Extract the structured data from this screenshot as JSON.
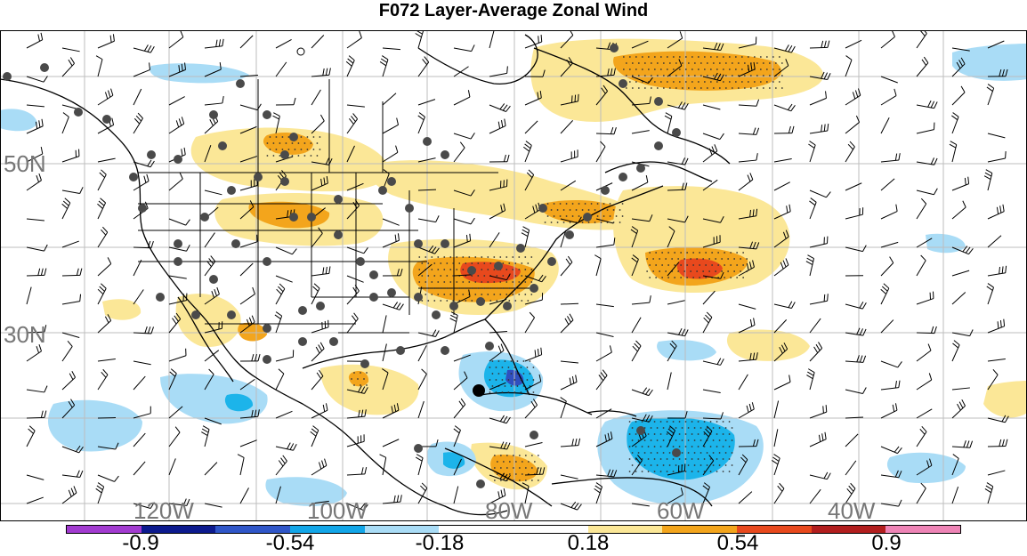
{
  "title": "F072 Layer-Average Zonal Wind",
  "colors": {
    "neg_strong": "#2f4fbf",
    "neg_mid": "#1cb4ea",
    "neg_weak": "#a9dcf6",
    "pos_weak": "#fbe797",
    "pos_mid": "#f3a51c",
    "pos_strong": "#e8491d",
    "coast": "#000000",
    "grid": "#bdbdbd",
    "station": "#4a4a4a"
  },
  "lat_labels": [
    "50N",
    "30N"
  ],
  "lon_labels": [
    "120W",
    "100W",
    "80W",
    "60W",
    "40W"
  ],
  "colorbar": {
    "segment_colors": [
      "#a23bd0",
      "#0c1a8e",
      "#2f56c8",
      "#12a6e8",
      "#a9dcf6",
      "#ffffff",
      "#ffffff",
      "#fbe797",
      "#f3a51c",
      "#e8491d",
      "#b21e1e",
      "#ee84b6"
    ],
    "labels": [
      "-0.9",
      "-0.54",
      "-0.18",
      "0.18",
      "0.54",
      "0.9"
    ]
  }
}
